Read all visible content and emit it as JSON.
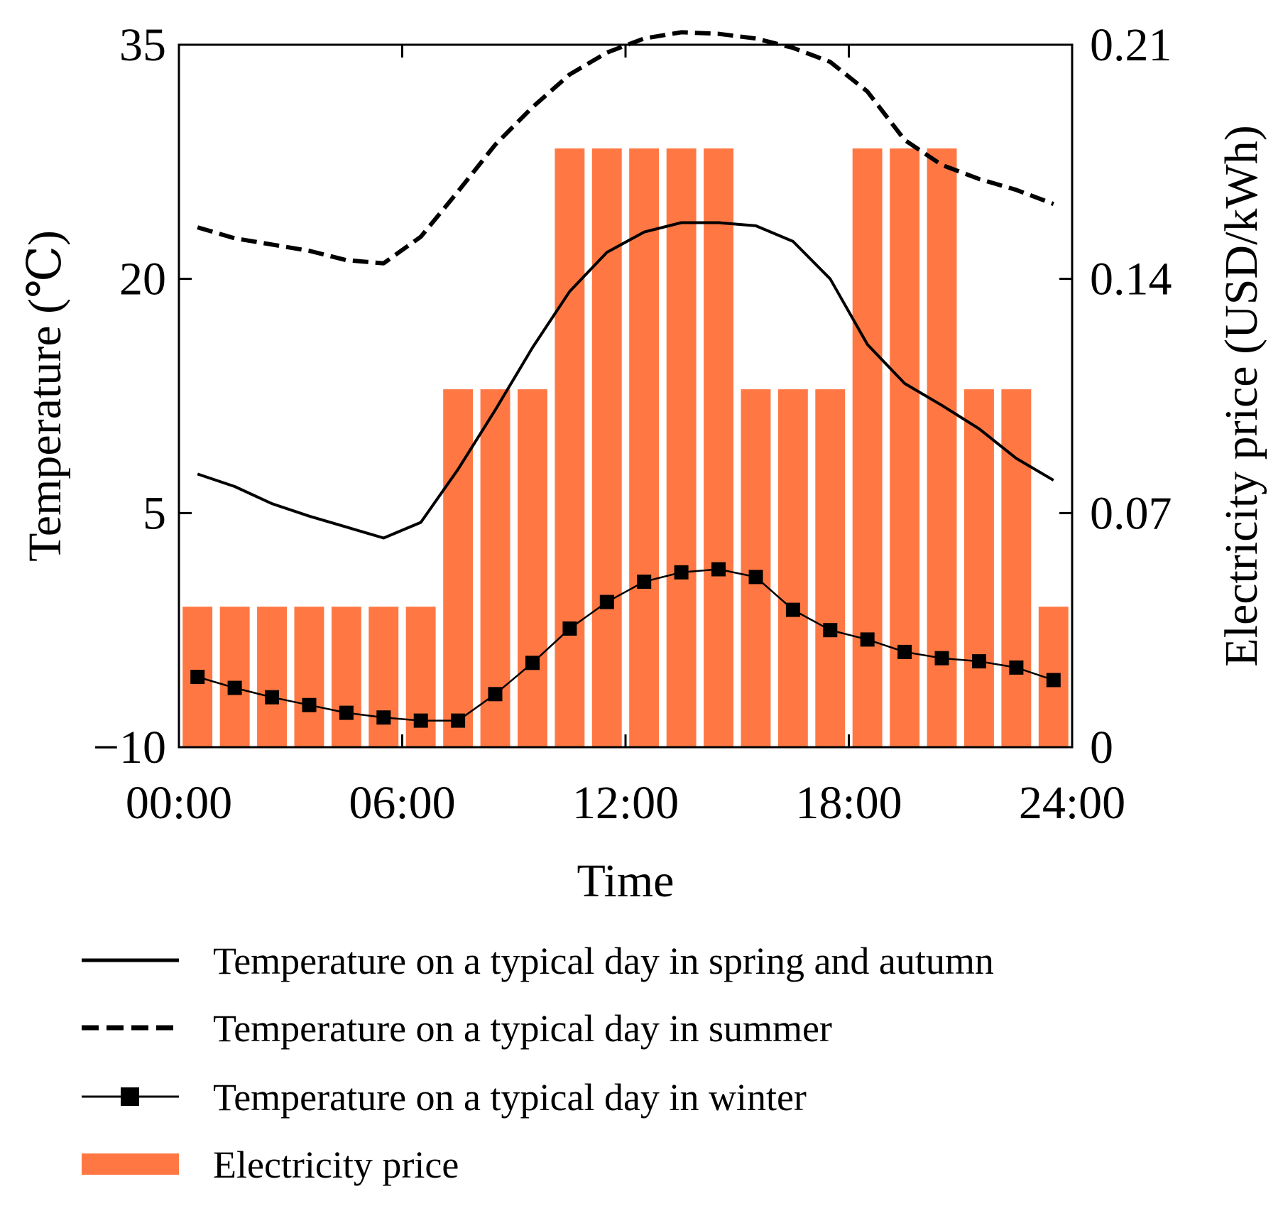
{
  "chart_data": {
    "type": "bar+line",
    "xlabel": "Time",
    "ylabel_left": "Temperature (℃)",
    "ylabel_right": "Electricity price (USD/kWh)",
    "x_ticks": [
      "00:00",
      "06:00",
      "12:00",
      "18:00",
      "24:00"
    ],
    "x_range_hours": [
      0,
      24
    ],
    "y_left": {
      "range": [
        -10,
        35
      ],
      "ticks": [
        -10,
        5,
        20,
        35
      ],
      "tick_labels": [
        "−10",
        "5",
        "20",
        "35"
      ]
    },
    "y_right": {
      "range": [
        0,
        0.21
      ],
      "ticks": [
        0,
        0.07,
        0.14,
        0.21
      ],
      "tick_labels": [
        "0",
        "0.07",
        "0.14",
        "0.21"
      ]
    },
    "hours": [
      0.5,
      1.5,
      2.5,
      3.5,
      4.5,
      5.5,
      6.5,
      7.5,
      8.5,
      9.5,
      10.5,
      11.5,
      12.5,
      13.5,
      14.5,
      15.5,
      16.5,
      17.5,
      18.5,
      19.5,
      20.5,
      21.5,
      22.5,
      23.5
    ],
    "series": [
      {
        "name": "Electricity price",
        "kind": "bar",
        "axis": "right",
        "color": "#FF7843",
        "values": [
          0.042,
          0.042,
          0.042,
          0.042,
          0.042,
          0.042,
          0.042,
          0.107,
          0.107,
          0.107,
          0.179,
          0.179,
          0.179,
          0.179,
          0.179,
          0.107,
          0.107,
          0.107,
          0.179,
          0.179,
          0.179,
          0.107,
          0.107,
          0.042
        ]
      },
      {
        "name": "Temperature on a typical day in spring and autumn",
        "kind": "line",
        "style": "solid",
        "axis": "left",
        "color": "#000000",
        "values": [
          7.5,
          6.7,
          5.6,
          4.8,
          4.1,
          3.4,
          4.4,
          7.8,
          11.6,
          15.6,
          19.2,
          21.7,
          23.0,
          23.6,
          23.6,
          23.4,
          22.4,
          20.0,
          15.8,
          13.3,
          11.9,
          10.4,
          8.5,
          7.1
        ]
      },
      {
        "name": "Temperature on a typical day in summer",
        "kind": "line",
        "style": "dashed",
        "axis": "left",
        "color": "#000000",
        "values": [
          23.3,
          22.6,
          22.2,
          21.8,
          21.2,
          21.0,
          22.7,
          25.6,
          28.6,
          31.0,
          33.1,
          34.5,
          35.4,
          35.8,
          35.7,
          35.4,
          34.8,
          33.9,
          32.0,
          28.9,
          27.3,
          26.4,
          25.7,
          24.8
        ]
      },
      {
        "name": "Temperature on a typical day in winter",
        "kind": "line",
        "style": "solid-square-markers",
        "axis": "left",
        "color": "#000000",
        "values": [
          -5.5,
          -6.2,
          -6.8,
          -7.3,
          -7.8,
          -8.1,
          -8.3,
          -8.3,
          -6.6,
          -4.6,
          -2.4,
          -0.7,
          0.6,
          1.2,
          1.4,
          0.9,
          -1.2,
          -2.5,
          -3.1,
          -3.9,
          -4.3,
          -4.5,
          -4.9,
          -5.7
        ]
      }
    ],
    "legend": [
      {
        "label": "Temperature on a typical day in spring and autumn",
        "icon": "solid-line"
      },
      {
        "label": "Temperature on a typical day in summer",
        "icon": "dashed-line"
      },
      {
        "label": "Temperature on a typical day in winter",
        "icon": "square-marker-line"
      },
      {
        "label": "Electricity price",
        "icon": "orange-bar"
      }
    ],
    "legend_position": "bottom"
  }
}
